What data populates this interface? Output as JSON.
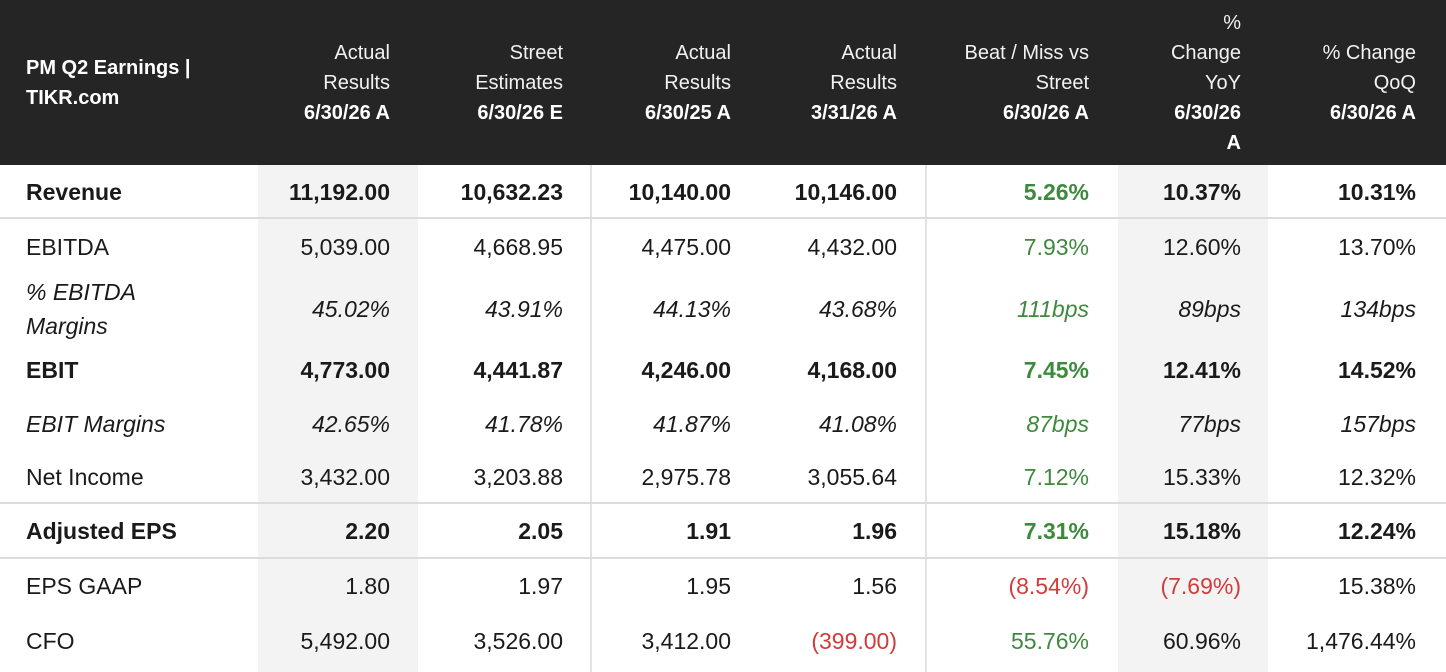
{
  "title": "PM Q2 Earnings | TIKR.com",
  "colors": {
    "header_bg": "#252525",
    "positive": "#3d8a3d",
    "negative": "#d23b3b",
    "shade": "#f3f3f3"
  },
  "columns": [
    {
      "label": "Actual\nResults",
      "date": "6/30/26 A"
    },
    {
      "label": "Street\nEstimates",
      "date": "6/30/26 E"
    },
    {
      "label": "Actual\nResults",
      "date": "6/30/25 A"
    },
    {
      "label": "Actual\nResults",
      "date": "3/31/26 A"
    },
    {
      "label": "Beat / Miss vs\nStreet",
      "date": "6/30/26 A"
    },
    {
      "label": "%\nChange\nYoY",
      "date": "6/30/26\nA"
    },
    {
      "label": "% Change\nQoQ",
      "date": "6/30/26 A"
    }
  ],
  "rows": [
    {
      "label": "Revenue",
      "values": [
        "11,192.00",
        "10,632.23",
        "10,140.00",
        "10,146.00",
        "5.26%",
        "10.37%",
        "10.31%"
      ],
      "tones": [
        "neu",
        "neu",
        "neu",
        "neu",
        "pos",
        "neu",
        "neu"
      ]
    },
    {
      "label": "EBITDA",
      "values": [
        "5,039.00",
        "4,668.95",
        "4,475.00",
        "4,432.00",
        "7.93%",
        "12.60%",
        "13.70%"
      ],
      "tones": [
        "neu",
        "neu",
        "neu",
        "neu",
        "pos",
        "neu",
        "neu"
      ]
    },
    {
      "label": "% EBITDA\nMargins",
      "values": [
        "45.02%",
        "43.91%",
        "44.13%",
        "43.68%",
        "111bps",
        "89bps",
        "134bps"
      ],
      "tones": [
        "neu",
        "neu",
        "neu",
        "neu",
        "pos",
        "neu",
        "neu"
      ]
    },
    {
      "label": "EBIT",
      "values": [
        "4,773.00",
        "4,441.87",
        "4,246.00",
        "4,168.00",
        "7.45%",
        "12.41%",
        "14.52%"
      ],
      "tones": [
        "neu",
        "neu",
        "neu",
        "neu",
        "pos",
        "neu",
        "neu"
      ]
    },
    {
      "label": "EBIT Margins",
      "values": [
        "42.65%",
        "41.78%",
        "41.87%",
        "41.08%",
        "87bps",
        "77bps",
        "157bps"
      ],
      "tones": [
        "neu",
        "neu",
        "neu",
        "neu",
        "pos",
        "neu",
        "neu"
      ]
    },
    {
      "label": "Net Income",
      "values": [
        "3,432.00",
        "3,203.88",
        "2,975.78",
        "3,055.64",
        "7.12%",
        "15.33%",
        "12.32%"
      ],
      "tones": [
        "neu",
        "neu",
        "neu",
        "neu",
        "pos",
        "neu",
        "neu"
      ]
    },
    {
      "label": "Adjusted EPS",
      "values": [
        "2.20",
        "2.05",
        "1.91",
        "1.96",
        "7.31%",
        "15.18%",
        "12.24%"
      ],
      "tones": [
        "neu",
        "neu",
        "neu",
        "neu",
        "pos",
        "neu",
        "neu"
      ]
    },
    {
      "label": "EPS GAAP",
      "values": [
        "1.80",
        "1.97",
        "1.95",
        "1.56",
        "(8.54%)",
        "(7.69%)",
        "15.38%"
      ],
      "tones": [
        "neu",
        "neu",
        "neu",
        "neu",
        "neg",
        "neg",
        "neu"
      ]
    },
    {
      "label": "CFO",
      "values": [
        "5,492.00",
        "3,526.00",
        "3,412.00",
        "(399.00)",
        "55.76%",
        "60.96%",
        "1,476.44%"
      ],
      "tones": [
        "neu",
        "neu",
        "neu",
        "neg",
        "pos",
        "neu",
        "neu"
      ]
    }
  ]
}
